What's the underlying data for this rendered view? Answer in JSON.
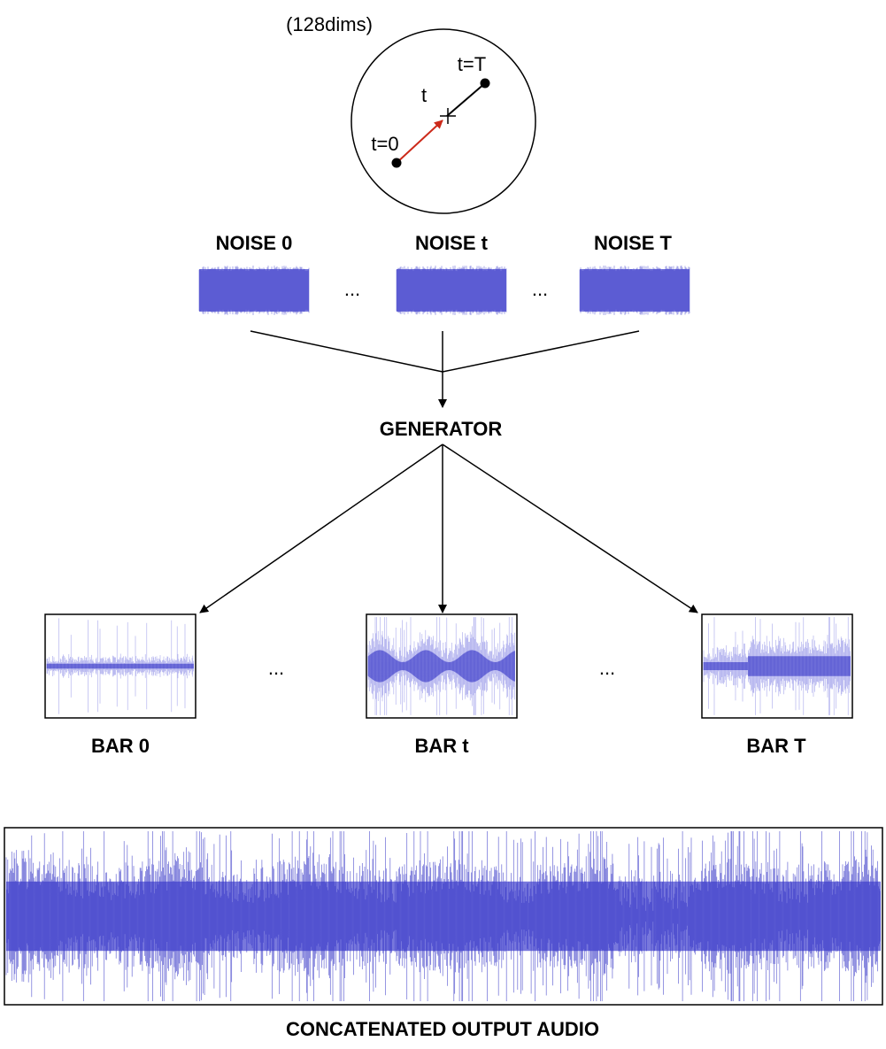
{
  "latent": {
    "dims_label": "(128dims)",
    "start_label": "t=0",
    "end_label": "t=T",
    "current_label": "t"
  },
  "noise": {
    "items": [
      {
        "label": "NOISE 0"
      },
      {
        "label": "NOISE t"
      },
      {
        "label": "NOISE T"
      }
    ],
    "ellipsis": "..."
  },
  "generator": {
    "label": "GENERATOR"
  },
  "bars": {
    "items": [
      {
        "label": "BAR 0"
      },
      {
        "label": "BAR t"
      },
      {
        "label": "BAR T"
      }
    ],
    "ellipsis": "..."
  },
  "output": {
    "label": "CONCATENATED OUTPUT AUDIO"
  },
  "colors": {
    "interpolation_arrow": "#cc2a1a",
    "waveform_dark": "#3a3ac8",
    "waveform_fill": "#7878dc",
    "waveform_light": "#a8a8ec",
    "line": "#000000"
  }
}
